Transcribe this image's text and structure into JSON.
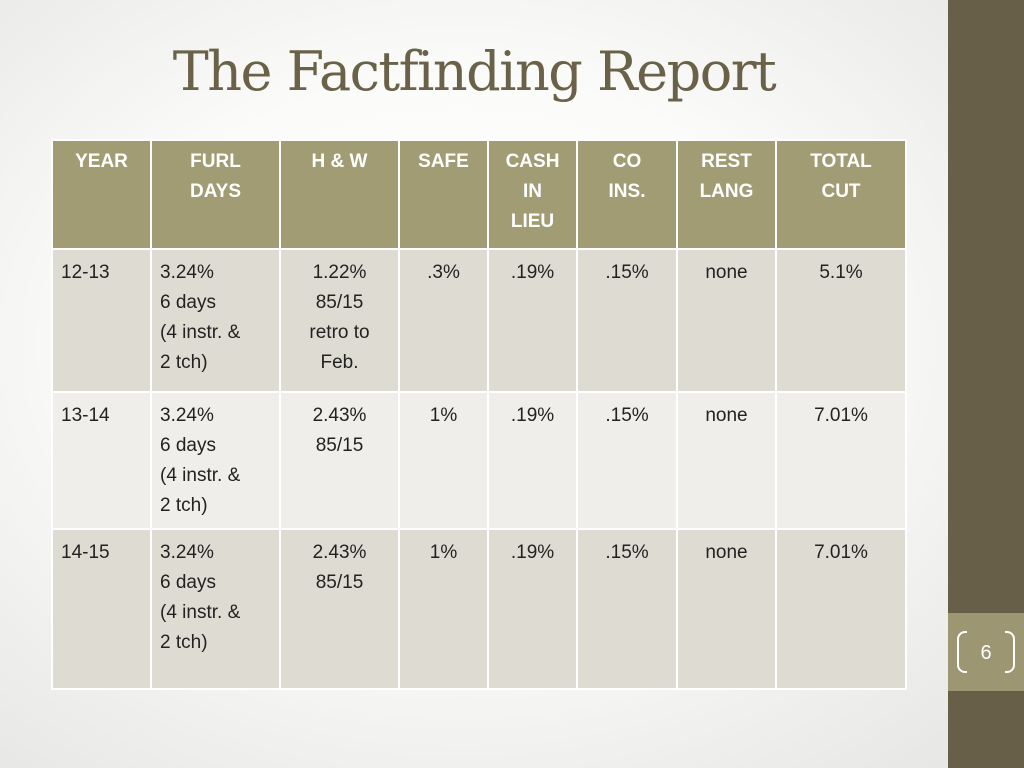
{
  "slide": {
    "title": "The Factfinding Report",
    "slide_number": "6"
  },
  "table": {
    "headers": [
      [
        "YEAR"
      ],
      [
        "FURL",
        "DAYS"
      ],
      [
        "H & W"
      ],
      [
        "SAFE"
      ],
      [
        "CASH",
        "IN",
        "LIEU"
      ],
      [
        "CO",
        "INS."
      ],
      [
        "REST",
        "LANG"
      ],
      [
        "TOTAL",
        "CUT"
      ]
    ],
    "rows": [
      {
        "year": "12-13",
        "furl_days": [
          "3.24%",
          "6 days",
          "(4 instr. &",
          "2 tch)"
        ],
        "h_w": [
          "1.22%",
          "85/15",
          "retro to",
          "Feb."
        ],
        "safe": ".3%",
        "cash_in_lieu": ".19%",
        "co_ins": ".15%",
        "rest_lang": "none",
        "total_cut": "5.1%"
      },
      {
        "year": "13-14",
        "furl_days": [
          "3.24%",
          "6 days",
          "(4 instr. &",
          "2 tch)"
        ],
        "h_w": [
          "2.43%",
          "85/15"
        ],
        "safe": "1%",
        "cash_in_lieu": ".19%",
        "co_ins": ".15%",
        "rest_lang": "none",
        "total_cut": "7.01%"
      },
      {
        "year": "14-15",
        "furl_days": [
          "3.24%",
          "6 days",
          "(4 instr. &",
          "2 tch)"
        ],
        "h_w": [
          "2.43%",
          "85/15"
        ],
        "safe": "1%",
        "cash_in_lieu": ".19%",
        "co_ins": ".15%",
        "rest_lang": "none",
        "total_cut": "7.01%"
      }
    ]
  },
  "colors": {
    "sidebar": "#675f48",
    "slide_number_box": "#9c9772",
    "title_text": "#6a6248",
    "header_fill": "#a19c73",
    "row_odd_fill": "#dedcd2",
    "row_even_fill": "#efeeea"
  }
}
